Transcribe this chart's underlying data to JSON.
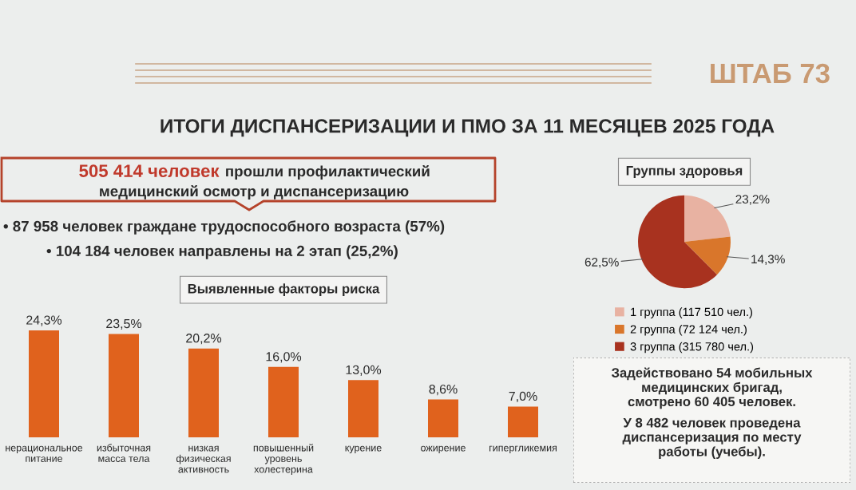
{
  "chart_data": [
    {
      "type": "other",
      "title": "ИТОГИ ДИСПАНСЕРИЗАЦИИ И ПМО ЗА 11 МЕСЯЦЕВ 2025 ГОДА",
      "annotations": [
        "ШТАБ 73",
        "505 414 человек",
        "прошли профилактический",
        "медицинский осмотр и диспансеризацию",
        "• 87 958 человек граждане трудоспособного возраста (57%)",
        "• 104 184 человек направлены на 2 этап (25,2%)"
      ]
    },
    {
      "type": "pie",
      "title": "Группы здоровья",
      "categories": [
        "1 группа (117 510 чел.)",
        "2 группа (72 124 чел.)",
        "3 группа (315 780 чел.)"
      ],
      "values": [
        23.2,
        14.3,
        62.5
      ],
      "colors": [
        "#e8b2a2",
        "#d9762b",
        "#a8321f"
      ],
      "value_labels": [
        "23,2%",
        "14,3%",
        "62,5%"
      ],
      "legend": "bottom"
    },
    {
      "type": "bar",
      "title": "Выявленные факторы риска",
      "categories": [
        "нерациональное\nпитание",
        "избыточная\nмасса тела",
        "низкая\nфизическая\nактивность",
        "повышенный\nуровень\nхолестерина",
        "курение",
        "ожирение",
        "гипергликемия"
      ],
      "values": [
        24.3,
        23.5,
        20.2,
        16.0,
        13.0,
        8.6,
        7.0
      ],
      "color": "#e0621d",
      "value_labels": [
        "24,3%",
        "23,5%",
        "20,2%",
        "16,0%",
        "13,0%",
        "8,6%",
        "7,0%"
      ]
    },
    {
      "type": "other",
      "annotations": [
        "Задействовано 54 мобильных\nмедицинских бригад,\nсмотрено 60 405 человек.",
        "У 8 482 человек проведена\nдиспансеризация по месту\nработы (учебы)."
      ]
    }
  ]
}
